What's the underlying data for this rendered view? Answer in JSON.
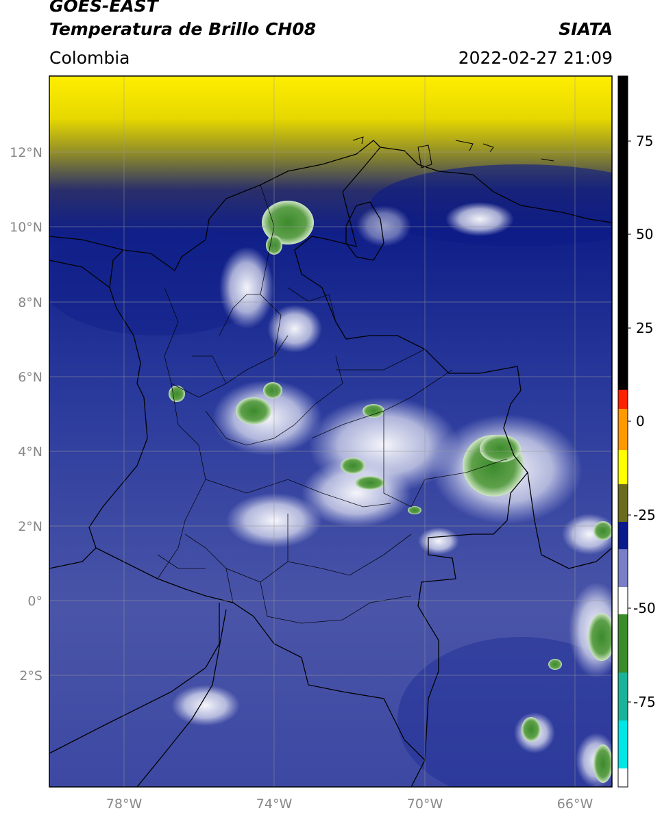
{
  "header": {
    "satellite": "GOES-EAST",
    "product": "Temperatura de Brillo CH08",
    "region": "Colombia",
    "source": "SIATA",
    "timestamp": "2022-02-27 21:09"
  },
  "map": {
    "lat_ticks": [
      "12°N",
      "10°N",
      "8°N",
      "6°N",
      "4°N",
      "2°N",
      "0°",
      "2°S"
    ],
    "lon_ticks": [
      "78°W",
      "74°W",
      "70°W",
      "66°W"
    ],
    "extent": {
      "lon": [
        -80,
        -65
      ],
      "lat": [
        -5,
        14
      ]
    }
  },
  "colorbar": {
    "ticks": [
      "75",
      "50",
      "25",
      "0",
      "-25",
      "-50",
      "-75"
    ],
    "range": [
      -93,
      90
    ],
    "colors": {
      "black": "#000000",
      "red": "#ff2200",
      "orange": "#ff9900",
      "yellow": "#ffff00",
      "olive": "#6b6b1e",
      "navy": "#0a1a8c",
      "periwinkle": "#7a7ec6",
      "white": "#ffffff",
      "green": "#3a8c2a",
      "teal": "#1ab39a",
      "cyan": "#00e5e5"
    }
  }
}
